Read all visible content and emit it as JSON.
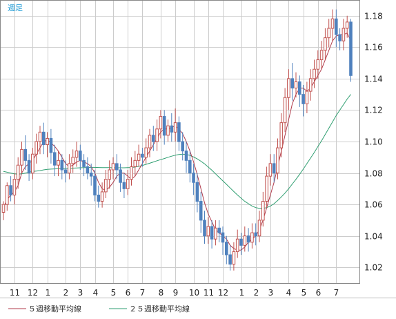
{
  "period_label": "週足",
  "colors": {
    "up": "#c0504d",
    "down": "#4f81bd",
    "ma5": "#b03a4a",
    "ma25": "#2e9e70",
    "grid": "#cccccc",
    "frame": "#888888"
  },
  "legend": {
    "ma5": "５週移動平均線",
    "ma25": "２５週移動平均線"
  },
  "chart_data": {
    "type": "candlestick",
    "ylim": [
      1.01,
      1.19
    ],
    "y_ticks": [
      "1.18",
      "1.16",
      "1.14",
      "1.12",
      "1.10",
      "1.08",
      "1.06",
      "1.04",
      "1.02"
    ],
    "x_ticks": [
      {
        "label": "11",
        "index": 3
      },
      {
        "label": "12",
        "index": 8
      },
      {
        "label": "1",
        "index": 12
      },
      {
        "label": "2",
        "index": 17
      },
      {
        "label": "3",
        "index": 21
      },
      {
        "label": "4",
        "index": 25
      },
      {
        "label": "5",
        "index": 30
      },
      {
        "label": "6",
        "index": 34
      },
      {
        "label": "7",
        "index": 38
      },
      {
        "label": "8",
        "index": 43
      },
      {
        "label": "9",
        "index": 47
      },
      {
        "label": "10",
        "index": 52
      },
      {
        "label": "11",
        "index": 56
      },
      {
        "label": "12",
        "index": 60
      },
      {
        "label": "1",
        "index": 65
      },
      {
        "label": "2",
        "index": 69
      },
      {
        "label": "3",
        "index": 73
      },
      {
        "label": "4",
        "index": 78
      },
      {
        "label": "5",
        "index": 82
      },
      {
        "label": "6",
        "index": 86
      },
      {
        "label": "7",
        "index": 91
      }
    ],
    "candles": [
      [
        1.055,
        1.06,
        1.05,
        1.062
      ],
      [
        1.06,
        1.072,
        1.056,
        1.074
      ],
      [
        1.072,
        1.066,
        1.062,
        1.078
      ],
      [
        1.066,
        1.076,
        1.06,
        1.08
      ],
      [
        1.076,
        1.085,
        1.07,
        1.09
      ],
      [
        1.085,
        1.095,
        1.08,
        1.1
      ],
      [
        1.095,
        1.088,
        1.082,
        1.104
      ],
      [
        1.088,
        1.08,
        1.075,
        1.092
      ],
      [
        1.08,
        1.092,
        1.076,
        1.096
      ],
      [
        1.092,
        1.1,
        1.086,
        1.105
      ],
      [
        1.1,
        1.106,
        1.092,
        1.11
      ],
      [
        1.106,
        1.098,
        1.092,
        1.112
      ],
      [
        1.098,
        1.102,
        1.09,
        1.106
      ],
      [
        1.102,
        1.093,
        1.086,
        1.108
      ],
      [
        1.093,
        1.085,
        1.078,
        1.098
      ],
      [
        1.085,
        1.088,
        1.078,
        1.094
      ],
      [
        1.088,
        1.082,
        1.076,
        1.092
      ],
      [
        1.082,
        1.08,
        1.074,
        1.088
      ],
      [
        1.08,
        1.086,
        1.076,
        1.092
      ],
      [
        1.086,
        1.09,
        1.08,
        1.095
      ],
      [
        1.09,
        1.094,
        1.084,
        1.1
      ],
      [
        1.094,
        1.088,
        1.082,
        1.098
      ],
      [
        1.088,
        1.084,
        1.078,
        1.092
      ],
      [
        1.084,
        1.08,
        1.076,
        1.09
      ],
      [
        1.08,
        1.078,
        1.072,
        1.086
      ],
      [
        1.078,
        1.066,
        1.062,
        1.082
      ],
      [
        1.066,
        1.062,
        1.058,
        1.072
      ],
      [
        1.062,
        1.068,
        1.058,
        1.074
      ],
      [
        1.068,
        1.076,
        1.064,
        1.082
      ],
      [
        1.076,
        1.082,
        1.07,
        1.088
      ],
      [
        1.082,
        1.086,
        1.076,
        1.09
      ],
      [
        1.086,
        1.082,
        1.076,
        1.092
      ],
      [
        1.082,
        1.074,
        1.068,
        1.086
      ],
      [
        1.074,
        1.07,
        1.064,
        1.08
      ],
      [
        1.07,
        1.076,
        1.066,
        1.082
      ],
      [
        1.076,
        1.084,
        1.072,
        1.09
      ],
      [
        1.084,
        1.088,
        1.078,
        1.094
      ],
      [
        1.088,
        1.092,
        1.084,
        1.098
      ],
      [
        1.092,
        1.09,
        1.084,
        1.096
      ],
      [
        1.09,
        1.096,
        1.086,
        1.102
      ],
      [
        1.096,
        1.104,
        1.09,
        1.108
      ],
      [
        1.104,
        1.1,
        1.094,
        1.11
      ],
      [
        1.1,
        1.108,
        1.094,
        1.114
      ],
      [
        1.108,
        1.116,
        1.102,
        1.12
      ],
      [
        1.116,
        1.104,
        1.098,
        1.12
      ],
      [
        1.104,
        1.11,
        1.1,
        1.114
      ],
      [
        1.11,
        1.106,
        1.1,
        1.118
      ],
      [
        1.106,
        1.112,
        1.1,
        1.121
      ],
      [
        1.112,
        1.1,
        1.094,
        1.116
      ],
      [
        1.1,
        1.094,
        1.088,
        1.106
      ],
      [
        1.094,
        1.088,
        1.08,
        1.1
      ],
      [
        1.088,
        1.08,
        1.074,
        1.094
      ],
      [
        1.08,
        1.074,
        1.066,
        1.086
      ],
      [
        1.074,
        1.062,
        1.055,
        1.08
      ],
      [
        1.062,
        1.05,
        1.042,
        1.068
      ],
      [
        1.05,
        1.04,
        1.035,
        1.056
      ],
      [
        1.04,
        1.046,
        1.035,
        1.052
      ],
      [
        1.046,
        1.038,
        1.032,
        1.05
      ],
      [
        1.038,
        1.045,
        1.034,
        1.05
      ],
      [
        1.045,
        1.042,
        1.036,
        1.05
      ],
      [
        1.042,
        1.036,
        1.028,
        1.046
      ],
      [
        1.036,
        1.028,
        1.022,
        1.04
      ],
      [
        1.028,
        1.022,
        1.018,
        1.034
      ],
      [
        1.022,
        1.03,
        1.018,
        1.036
      ],
      [
        1.03,
        1.038,
        1.026,
        1.044
      ],
      [
        1.038,
        1.034,
        1.028,
        1.042
      ],
      [
        1.034,
        1.04,
        1.03,
        1.046
      ],
      [
        1.04,
        1.036,
        1.03,
        1.045
      ],
      [
        1.036,
        1.042,
        1.032,
        1.048
      ],
      [
        1.042,
        1.04,
        1.034,
        1.048
      ],
      [
        1.04,
        1.05,
        1.036,
        1.056
      ],
      [
        1.05,
        1.062,
        1.046,
        1.068
      ],
      [
        1.062,
        1.078,
        1.058,
        1.084
      ],
      [
        1.078,
        1.086,
        1.072,
        1.092
      ],
      [
        1.086,
        1.08,
        1.074,
        1.092
      ],
      [
        1.08,
        1.096,
        1.076,
        1.102
      ],
      [
        1.096,
        1.112,
        1.09,
        1.118
      ],
      [
        1.112,
        1.128,
        1.106,
        1.134
      ],
      [
        1.128,
        1.14,
        1.12,
        1.146
      ],
      [
        1.14,
        1.134,
        1.126,
        1.15
      ],
      [
        1.134,
        1.138,
        1.128,
        1.144
      ],
      [
        1.138,
        1.13,
        1.122,
        1.142
      ],
      [
        1.13,
        1.124,
        1.116,
        1.136
      ],
      [
        1.124,
        1.132,
        1.118,
        1.138
      ],
      [
        1.132,
        1.14,
        1.126,
        1.146
      ],
      [
        1.14,
        1.146,
        1.134,
        1.152
      ],
      [
        1.146,
        1.152,
        1.14,
        1.158
      ],
      [
        1.152,
        1.158,
        1.146,
        1.164
      ],
      [
        1.158,
        1.166,
        1.152,
        1.172
      ],
      [
        1.166,
        1.172,
        1.16,
        1.178
      ],
      [
        1.172,
        1.178,
        1.164,
        1.184
      ],
      [
        1.178,
        1.168,
        1.16,
        1.184
      ],
      [
        1.168,
        1.164,
        1.158,
        1.172
      ],
      [
        1.164,
        1.172,
        1.158,
        1.178
      ],
      [
        1.172,
        1.176,
        1.166,
        1.18
      ],
      [
        1.176,
        1.142,
        1.138,
        1.178
      ]
    ],
    "ma5": [
      1.058,
      1.063,
      1.066,
      1.068,
      1.072,
      1.08,
      1.084,
      1.086,
      1.088,
      1.092,
      1.096,
      1.1,
      1.101,
      1.099,
      1.097,
      1.094,
      1.09,
      1.086,
      1.084,
      1.085,
      1.087,
      1.088,
      1.087,
      1.086,
      1.084,
      1.08,
      1.074,
      1.07,
      1.069,
      1.071,
      1.074,
      1.078,
      1.08,
      1.08,
      1.078,
      1.076,
      1.078,
      1.082,
      1.086,
      1.09,
      1.094,
      1.098,
      1.102,
      1.106,
      1.108,
      1.108,
      1.109,
      1.11,
      1.108,
      1.105,
      1.1,
      1.094,
      1.087,
      1.079,
      1.07,
      1.061,
      1.054,
      1.049,
      1.044,
      1.042,
      1.04,
      1.038,
      1.034,
      1.032,
      1.031,
      1.031,
      1.033,
      1.036,
      1.038,
      1.04,
      1.044,
      1.05,
      1.058,
      1.066,
      1.074,
      1.084,
      1.094,
      1.104,
      1.114,
      1.124,
      1.13,
      1.134,
      1.134,
      1.132,
      1.134,
      1.138,
      1.142,
      1.146,
      1.152,
      1.158,
      1.164,
      1.167,
      1.168,
      1.168,
      1.169,
      1.164
    ],
    "ma25": [
      1.081,
      1.0805,
      1.08,
      1.0795,
      1.0793,
      1.0795,
      1.08,
      1.0805,
      1.081,
      1.0812,
      1.0815,
      1.082,
      1.0823,
      1.0825,
      1.0826,
      1.0827,
      1.0828,
      1.0829,
      1.083,
      1.0831,
      1.0832,
      1.0833,
      1.0834,
      1.0835,
      1.0836,
      1.0836,
      1.0835,
      1.0834,
      1.0834,
      1.0834,
      1.0833,
      1.0833,
      1.0833,
      1.0833,
      1.0834,
      1.0835,
      1.0838,
      1.0842,
      1.0848,
      1.0855,
      1.0862,
      1.087,
      1.0878,
      1.0885,
      1.0892,
      1.09,
      1.0907,
      1.0913,
      1.0918,
      1.092,
      1.0918,
      1.0912,
      1.0902,
      1.089,
      1.0875,
      1.0858,
      1.0838,
      1.0818,
      1.0795,
      1.0772,
      1.075,
      1.0728,
      1.0705,
      1.0682,
      1.066,
      1.064,
      1.062,
      1.0605,
      1.059,
      1.058,
      1.0575,
      1.0575,
      1.058,
      1.059,
      1.0605,
      1.0625,
      1.0648,
      1.0672,
      1.07,
      1.073,
      1.076,
      1.0792,
      1.0825,
      1.086,
      1.0895,
      1.093,
      1.0968,
      1.1005,
      1.1045,
      1.1085,
      1.1125,
      1.1165,
      1.12,
      1.1235,
      1.127,
      1.13
    ]
  }
}
